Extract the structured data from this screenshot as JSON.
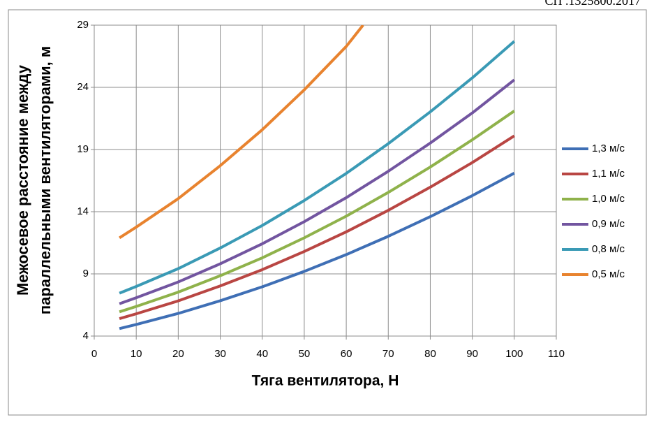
{
  "header": "СП .1325800.2017",
  "chart_data": {
    "type": "line",
    "ylabel": [
      "Межосевое расстояние между",
      "параллельными вентиляторами, м"
    ],
    "xlabel": "Тяга вентилятора, Н",
    "xlim": [
      0,
      110
    ],
    "xticks": [
      0,
      10,
      20,
      30,
      40,
      50,
      60,
      70,
      80,
      90,
      100,
      110
    ],
    "ylim": [
      4,
      29
    ],
    "yticks": [
      4,
      9,
      14,
      19,
      24,
      29
    ],
    "grid": true,
    "legend": "right",
    "series": [
      {
        "name": "1,3 м/с",
        "color": "#3f6fb5",
        "x": [
          6,
          10,
          20,
          30,
          40,
          50,
          60,
          70,
          80,
          90,
          100
        ],
        "values": [
          4.6,
          4.93,
          5.82,
          6.84,
          7.96,
          9.2,
          10.55,
          12.02,
          13.6,
          15.29,
          17.1
        ]
      },
      {
        "name": "1,1 м/с",
        "color": "#b94643",
        "x": [
          6,
          10,
          20,
          30,
          40,
          50,
          60,
          70,
          80,
          90,
          100
        ],
        "values": [
          5.4,
          5.79,
          6.83,
          8.03,
          9.34,
          10.8,
          12.38,
          14.11,
          15.97,
          17.95,
          20.1
        ]
      },
      {
        "name": "1,0 м/с",
        "color": "#8fb24b",
        "x": [
          6,
          10,
          20,
          30,
          40,
          50,
          60,
          70,
          80,
          90,
          100
        ],
        "values": [
          5.95,
          6.38,
          7.53,
          8.85,
          10.29,
          11.9,
          13.64,
          15.55,
          17.59,
          19.78,
          22.1
        ]
      },
      {
        "name": "0,9 м/с",
        "color": "#7255a0",
        "x": [
          6,
          10,
          20,
          30,
          40,
          50,
          60,
          70,
          80,
          90,
          100
        ],
        "values": [
          6.6,
          7.08,
          8.35,
          9.81,
          11.42,
          13.2,
          15.13,
          17.25,
          19.52,
          21.94,
          24.6
        ]
      },
      {
        "name": "0,8 м/с",
        "color": "#3a9ab5",
        "x": [
          6,
          10,
          20,
          30,
          40,
          50,
          60,
          70,
          80,
          90,
          100
        ],
        "values": [
          7.45,
          7.99,
          9.42,
          11.08,
          12.89,
          14.9,
          17.08,
          19.47,
          22.03,
          24.76,
          27.7
        ]
      },
      {
        "name": "0,5 м/с",
        "color": "#e8832f",
        "x": [
          6,
          10,
          20,
          30,
          40,
          50,
          60,
          64
        ],
        "values": [
          11.9,
          12.76,
          15.05,
          17.7,
          20.59,
          23.8,
          27.29,
          29
        ]
      }
    ]
  }
}
